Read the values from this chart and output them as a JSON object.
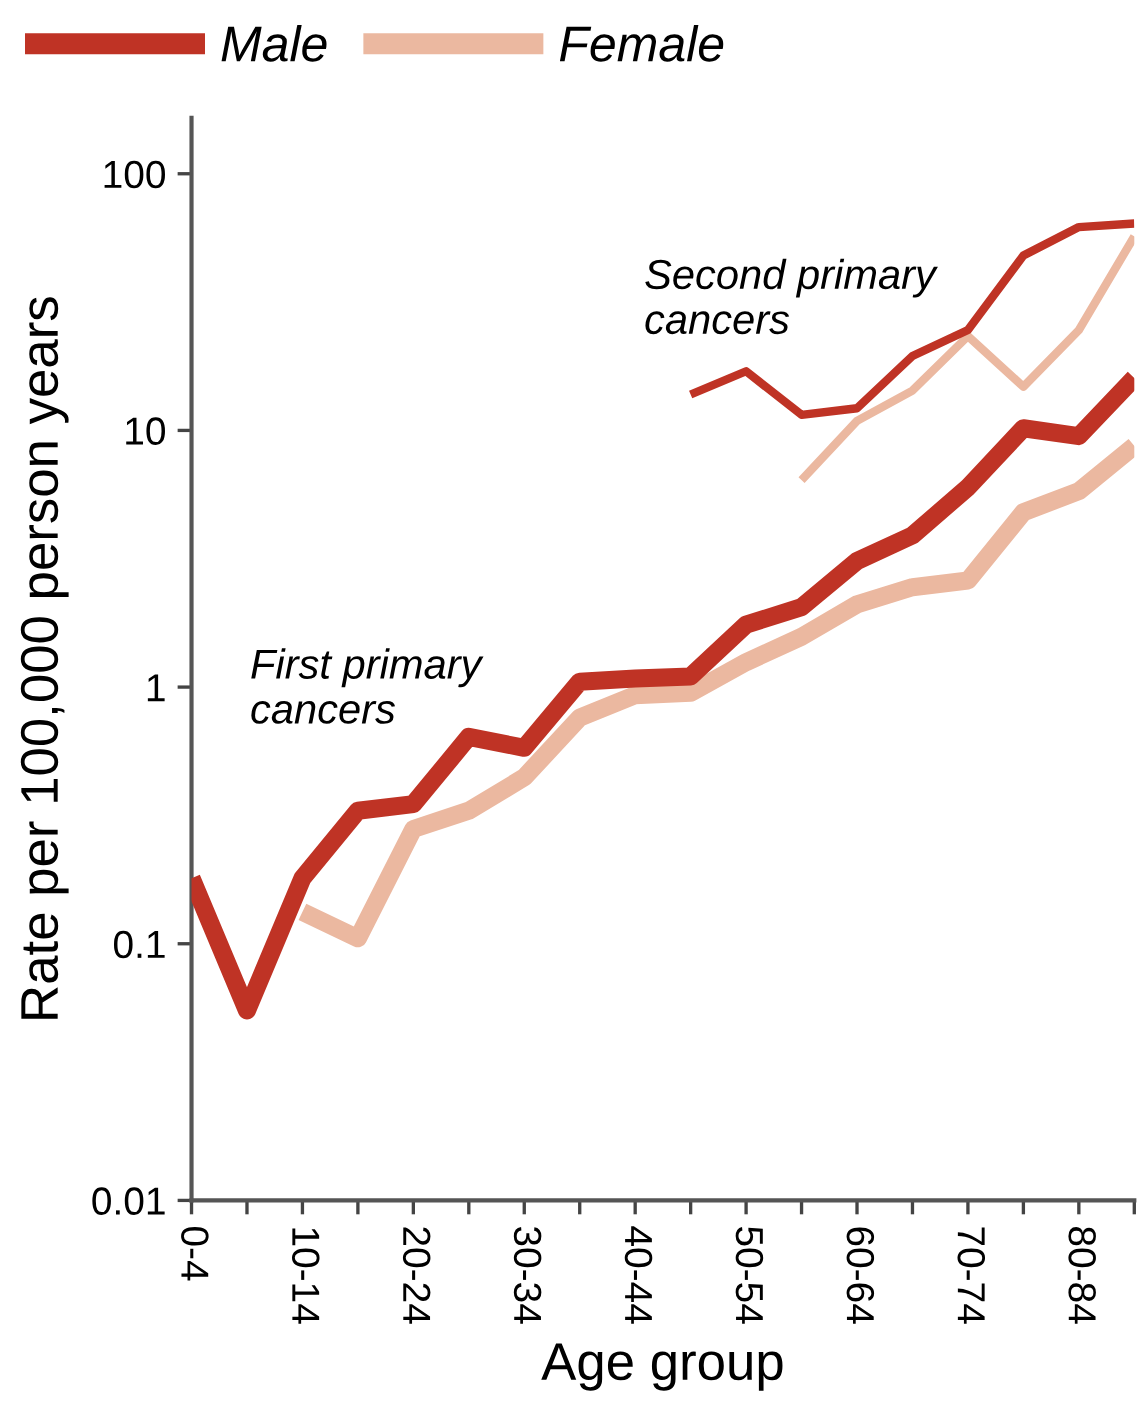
{
  "chart_data": {
    "type": "line",
    "xlabel": "Age group",
    "ylabel": "Rate per 100,000 person years",
    "categories": [
      "0-4",
      null,
      "10-14",
      null,
      "20-24",
      null,
      "30-34",
      null,
      "40-44",
      null,
      "50-54",
      null,
      "60-64",
      null,
      "70-74",
      null,
      "80-84",
      null
    ],
    "series": [
      {
        "name": "Male",
        "color": "#bf3325",
        "values": [
          0.18,
          0.055,
          0.18,
          0.33,
          0.35,
          0.64,
          0.58,
          1.05,
          1.08,
          1.1,
          1.75,
          2.05,
          3.1,
          3.9,
          6.0,
          10.2,
          9.5,
          16
        ]
      },
      {
        "name": "Female",
        "color": "#ebb8a0",
        "values": [
          null,
          null,
          0.133,
          0.105,
          0.28,
          0.33,
          0.445,
          0.76,
          0.93,
          0.95,
          1.25,
          1.57,
          2.1,
          2.45,
          2.6,
          4.8,
          5.8,
          8.7
        ]
      },
      {
        "color": "#bf3325",
        "values": [
          null,
          null,
          null,
          null,
          null,
          null,
          null,
          null,
          null,
          13.8,
          17,
          11.5,
          12.2,
          19.5,
          24.6,
          48,
          62,
          64
        ]
      },
      {
        "color": "#ebb8a0",
        "values": [
          null,
          null,
          null,
          null,
          null,
          null,
          null,
          null,
          null,
          null,
          null,
          6.4,
          10.9,
          14.3,
          23.3,
          14.8,
          24.6,
          57
        ]
      }
    ],
    "log": "y",
    "ylim": [
      0.01,
      165
    ],
    "yticks": [
      0.01,
      0.1,
      1,
      10,
      100
    ],
    "annotations": [
      "First primary\ncancers",
      "Second primary\ncancers"
    ],
    "legend": "top left"
  }
}
